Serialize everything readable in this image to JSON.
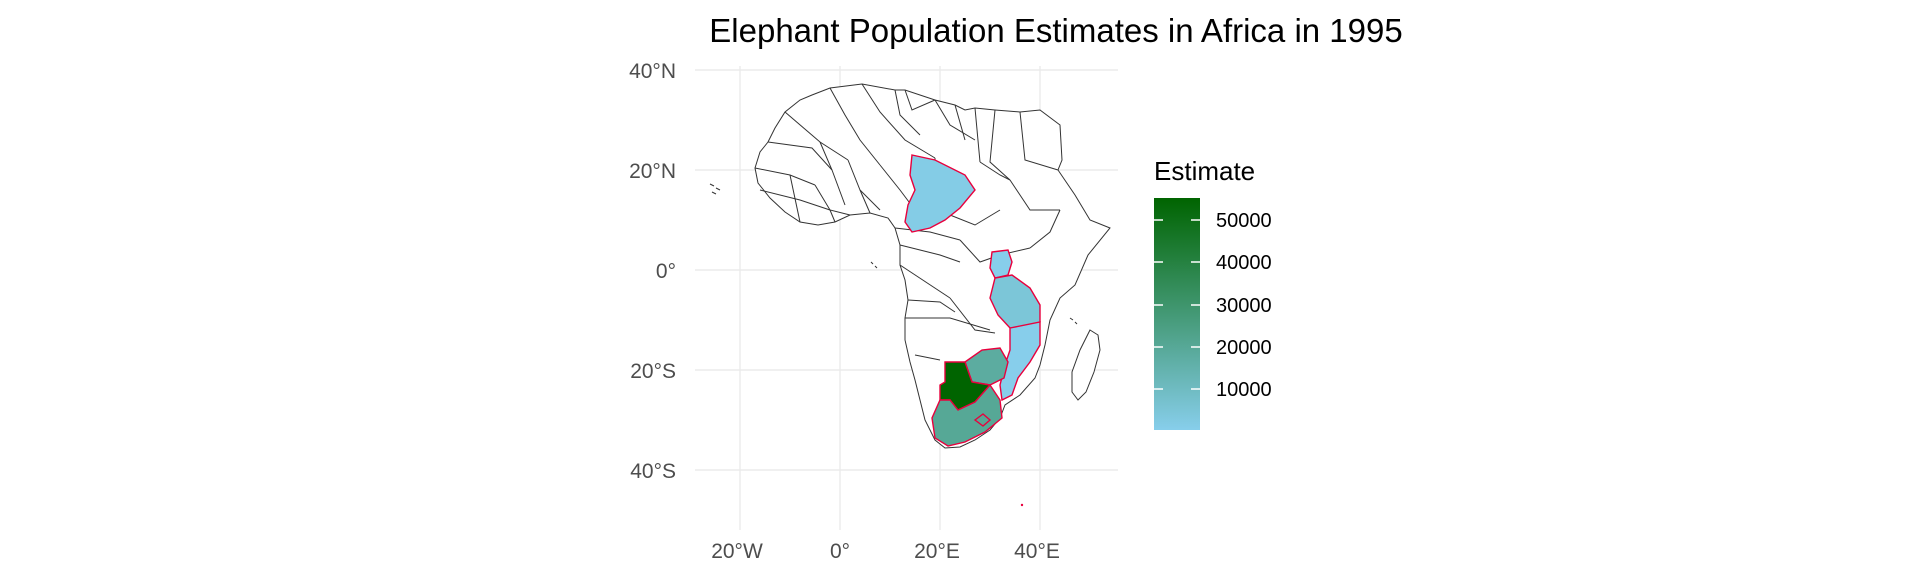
{
  "title": "Elephant Population Estimates in Africa in 1995",
  "axes": {
    "x_ticks": [
      "20°W",
      "0°",
      "20°E",
      "40°E"
    ],
    "y_ticks": [
      "40°N",
      "20°N",
      "0°",
      "20°S",
      "40°S"
    ]
  },
  "legend": {
    "title": "Estimate",
    "ticks": [
      "50000",
      "40000",
      "30000",
      "20000",
      "10000"
    ],
    "color_low": "#87CEEB",
    "color_high": "#006400"
  },
  "colors": {
    "land": "#ffffff",
    "border": "#333333",
    "highlight_border": "#e8003d"
  },
  "chart_data": {
    "type": "choropleth",
    "title": "Elephant Population Estimates in Africa in 1995",
    "legend_title": "Estimate",
    "scale_range": [
      5000,
      55000
    ],
    "regions": [
      {
        "country": "Botswana",
        "estimate": 55000
      },
      {
        "country": "South Africa",
        "estimate": 23000
      },
      {
        "country": "Zimbabwe",
        "estimate": 21000
      },
      {
        "country": "Tanzania",
        "estimate": 9000
      },
      {
        "country": "Chad",
        "estimate": 6000
      },
      {
        "country": "Mozambique",
        "estimate": 5000
      },
      {
        "country": "Uganda",
        "estimate": 5000
      }
    ]
  }
}
